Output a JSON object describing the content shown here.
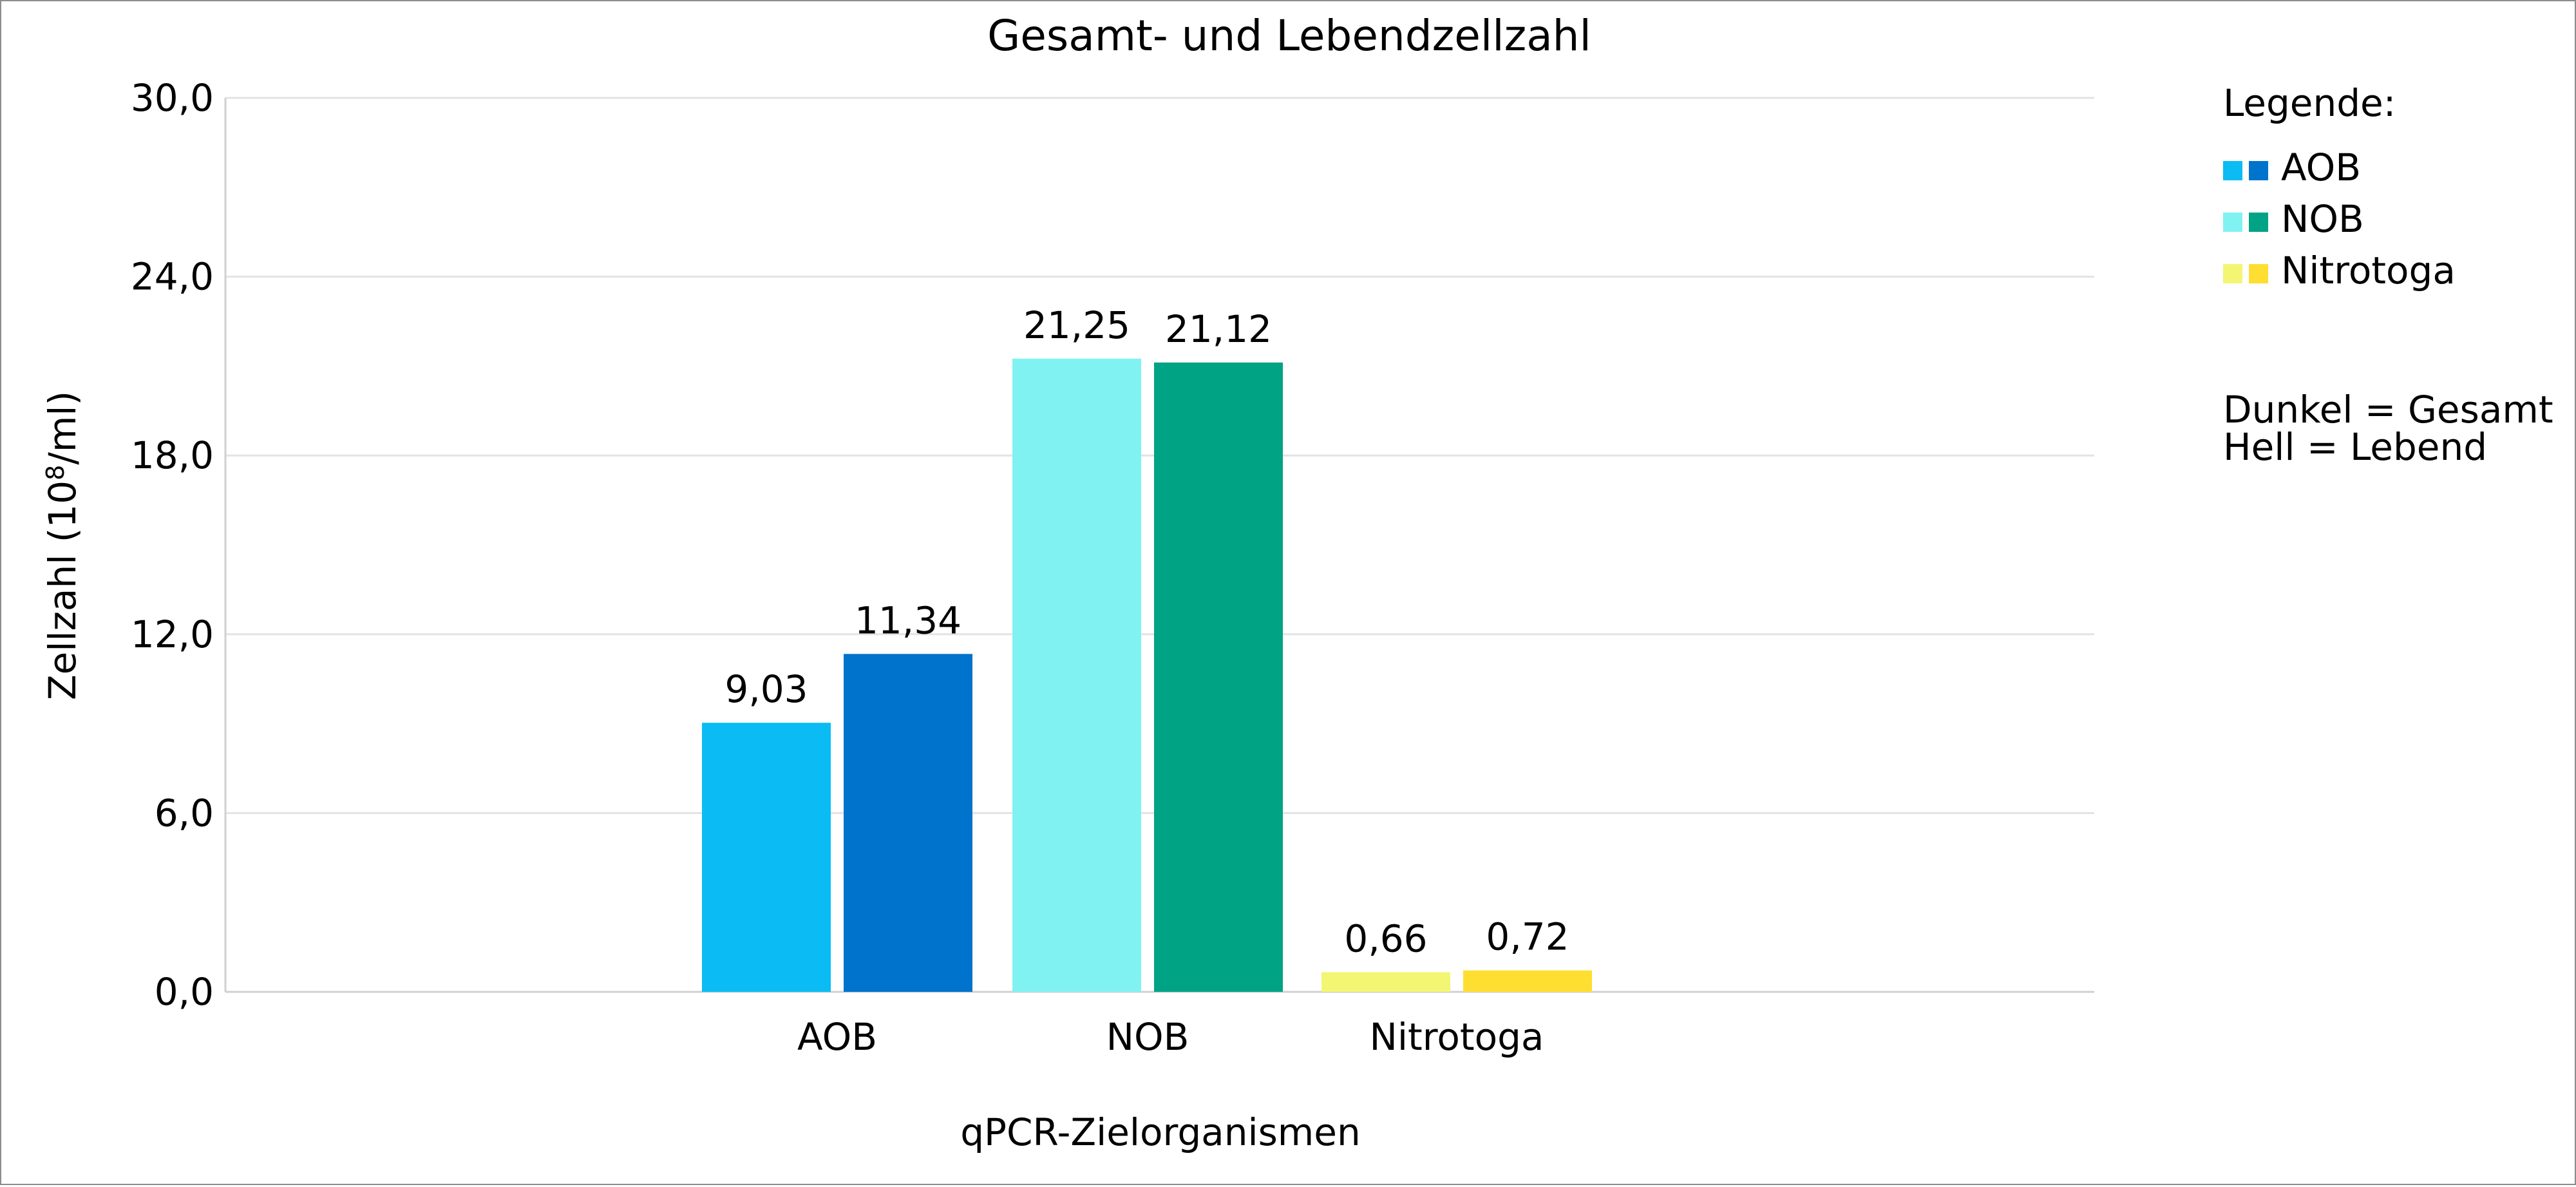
{
  "chart_data": {
    "type": "bar",
    "title": "Gesamt- und Lebendzellzahl",
    "xlabel": "qPCR-Zielorganismen",
    "ylabel_prefix": "Zellzahl (10",
    "ylabel_exp": "8",
    "ylabel_suffix": "/ml)",
    "ylim": [
      0,
      30
    ],
    "yticks": [
      0,
      6,
      12,
      18,
      24,
      30
    ],
    "ytick_labels": [
      "0,0",
      "6,0",
      "12,0",
      "18,0",
      "24,0",
      "30,0"
    ],
    "grid": true,
    "categories": [
      "AOB",
      "NOB",
      "Nitrotoga"
    ],
    "series": [
      {
        "name": "Lebend",
        "values": [
          9.03,
          21.25,
          0.66
        ],
        "labels": [
          "9,03",
          "21,25",
          "0,66"
        ]
      },
      {
        "name": "Gesamt",
        "values": [
          11.34,
          21.12,
          0.72
        ],
        "labels": [
          "11,34",
          "21,12",
          "0,72"
        ]
      }
    ],
    "colors": {
      "AOB": {
        "light": "#0ABCF3",
        "dark": "#0073CC"
      },
      "NOB": {
        "light": "#81F2F2",
        "dark": "#00A384"
      },
      "Nitrotoga": {
        "light": "#F2F673",
        "dark": "#FFDE32"
      },
      "grid": "#e3e3e3",
      "axis": "#d0d0d0"
    },
    "legend": {
      "position": "right",
      "heading": "Legende:",
      "entries": [
        "AOB",
        "NOB",
        "Nitrotoga"
      ],
      "note_dark": "Dunkel = Gesamt",
      "note_light": "Hell = Lebend"
    }
  }
}
